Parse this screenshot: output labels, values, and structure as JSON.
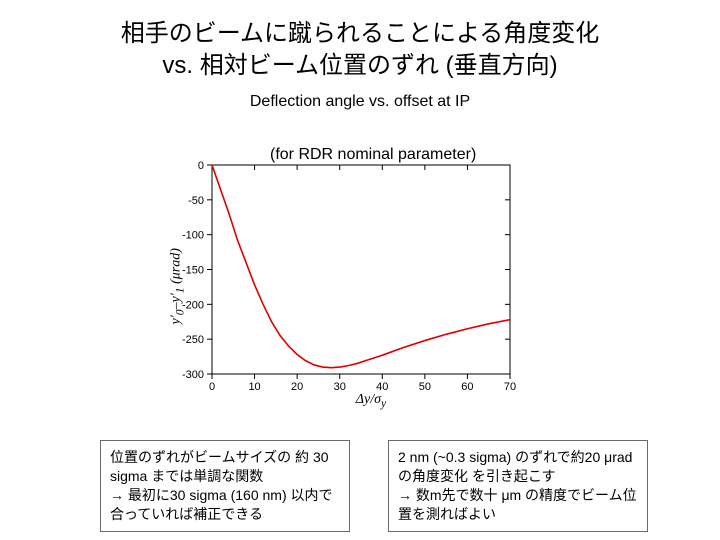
{
  "title": {
    "line1": "相手のビームに蹴られることによる角度変化",
    "line2": "vs. 相対ビーム位置のずれ (垂直方向)"
  },
  "subtitle_main": "Deflection angle vs. offset at IP",
  "subtitle_sub": "(for RDR nominal parameter)",
  "chart": {
    "type": "line",
    "xlim": [
      0,
      70
    ],
    "ylim": [
      -300,
      0
    ],
    "xticks": [
      0,
      10,
      20,
      30,
      40,
      50,
      60,
      70
    ],
    "yticks": [
      0,
      -50,
      -100,
      -150,
      -200,
      -250,
      -300
    ],
    "xlabel_html": "Δy/σ<sub>y</sub>",
    "ylabel_html": "y'<sub>0</sub>‒y'<sub>1</sub> (μrad)",
    "line_color": "#dd0000",
    "line_width": 1.6,
    "frame_color": "#000000",
    "tick_fontsize": 11,
    "label_fontsize": 14,
    "background_color": "#ffffff",
    "data": [
      [
        0,
        0
      ],
      [
        2,
        -35
      ],
      [
        4,
        -70
      ],
      [
        6,
        -108
      ],
      [
        8,
        -140
      ],
      [
        10,
        -172
      ],
      [
        12,
        -200
      ],
      [
        14,
        -225
      ],
      [
        16,
        -245
      ],
      [
        18,
        -260
      ],
      [
        20,
        -272
      ],
      [
        22,
        -281
      ],
      [
        24,
        -287
      ],
      [
        26,
        -290
      ],
      [
        28,
        -291
      ],
      [
        30,
        -290
      ],
      [
        32,
        -288
      ],
      [
        34,
        -285
      ],
      [
        36,
        -281
      ],
      [
        38,
        -277
      ],
      [
        40,
        -273
      ],
      [
        45,
        -262
      ],
      [
        50,
        -252
      ],
      [
        55,
        -243
      ],
      [
        60,
        -235
      ],
      [
        65,
        -228
      ],
      [
        70,
        -222
      ]
    ]
  },
  "notes": {
    "left_html": "位置のずれがビームサイズの 約 30 sigma までは単調な関数<br>→ 最初に30 sigma (160 nm) 以内で合っていれば補正できる",
    "right_html": "2 nm (~0.3 sigma) のずれで約20 μrad の角度変化 を引き起こす<br>→ 数m先で数十 μm の精度でビーム位置を測ればよい"
  }
}
